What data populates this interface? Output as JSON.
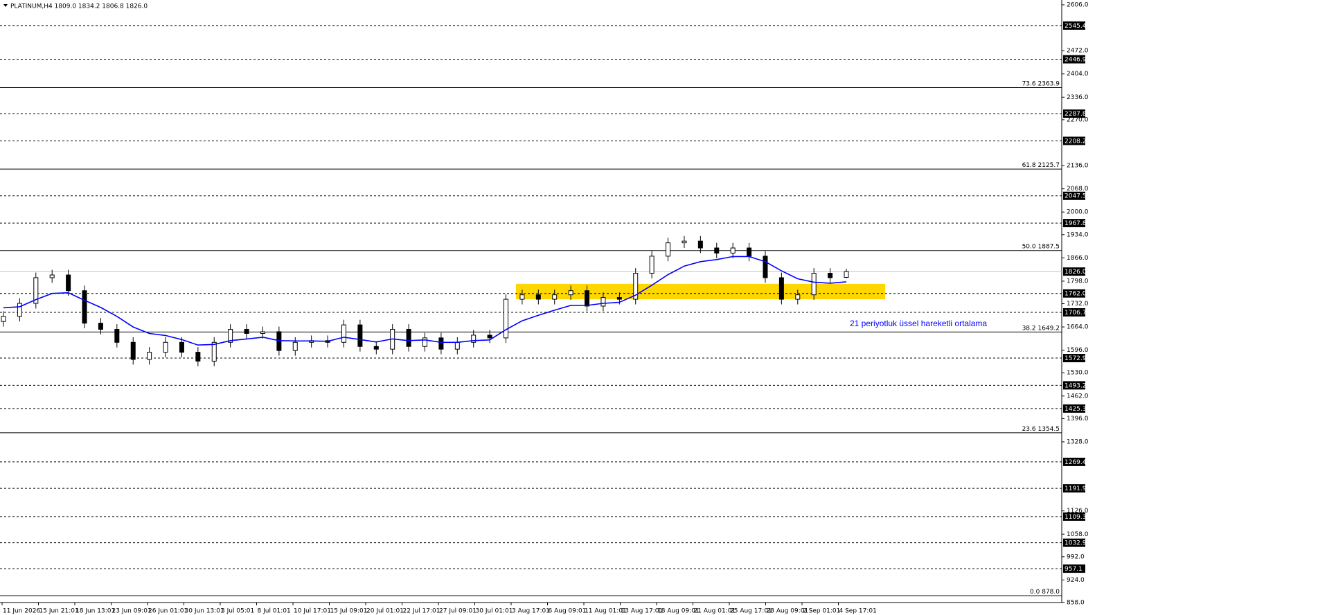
{
  "chart_data": {
    "type": "candlestick",
    "title": "PLATINUM,H4  1809.0 1834.2 1806.8 1826.0",
    "ylim": [
      858,
      2606
    ],
    "yticks": [
      {
        "value": 2606,
        "label": "2606.0"
      },
      {
        "value": 2472,
        "label": "2472.0"
      },
      {
        "value": 2404,
        "label": "2404.0"
      },
      {
        "value": 2336,
        "label": "2336.0"
      },
      {
        "value": 2270,
        "label": "2270.0"
      },
      {
        "value": 2136,
        "label": "2136.0"
      },
      {
        "value": 2068,
        "label": "2068.0"
      },
      {
        "value": 2000,
        "label": "2000.0"
      },
      {
        "value": 1934,
        "label": "1934.0"
      },
      {
        "value": 1866,
        "label": "1866.0"
      },
      {
        "value": 1798,
        "label": "1798.0"
      },
      {
        "value": 1732,
        "label": "1732.0"
      },
      {
        "value": 1664,
        "label": "1664.0"
      },
      {
        "value": 1596,
        "label": "1596.0"
      },
      {
        "value": 1530,
        "label": "1530.0"
      },
      {
        "value": 1462,
        "label": "1462.0"
      },
      {
        "value": 1396,
        "label": "1396.0"
      },
      {
        "value": 1328,
        "label": "1328.0"
      },
      {
        "value": 1126,
        "label": "1126.0"
      },
      {
        "value": 1058,
        "label": "1058.0"
      },
      {
        "value": 992,
        "label": "992.0"
      },
      {
        "value": 924,
        "label": "924.0"
      },
      {
        "value": 858,
        "label": "858.0"
      }
    ],
    "x_labels": [
      "11 Jun 2026",
      "15 Jun 21:01",
      "18 Jun 13:01",
      "23 Jun 09:01",
      "26 Jun 01:01",
      "30 Jun 13:01",
      "3 Jul 05:01",
      "8 Jul 01:01",
      "10 Jul 17:01",
      "15 Jul 09:01",
      "20 Jul 01:01",
      "22 Jul 17:01",
      "27 Jul 09:01",
      "30 Jul 01:01",
      "3 Aug 17:01",
      "6 Aug 09:01",
      "11 Aug 01:01",
      "13 Aug 17:01",
      "18 Aug 09:01",
      "21 Aug 01:01",
      "25 Aug 17:01",
      "28 Aug 09:01",
      "2 Sep 01:01",
      "4 Sep 17:01"
    ],
    "ohlc": [
      [
        1680,
        1710,
        1665,
        1695
      ],
      [
        1695,
        1748,
        1680,
        1733
      ],
      [
        1733,
        1823,
        1718,
        1808
      ],
      [
        1808,
        1831,
        1793,
        1816
      ],
      [
        1816,
        1831,
        1755,
        1770
      ],
      [
        1770,
        1785,
        1660,
        1675
      ],
      [
        1675,
        1690,
        1642,
        1657
      ],
      [
        1657,
        1672,
        1604,
        1619
      ],
      [
        1619,
        1634,
        1554,
        1569
      ],
      [
        1569,
        1605,
        1554,
        1590
      ],
      [
        1590,
        1634,
        1575,
        1619
      ],
      [
        1619,
        1634,
        1575,
        1590
      ],
      [
        1590,
        1605,
        1549,
        1564
      ],
      [
        1564,
        1634,
        1549,
        1619
      ],
      [
        1619,
        1672,
        1604,
        1657
      ],
      [
        1657,
        1672,
        1630,
        1645
      ],
      [
        1645,
        1665,
        1630,
        1650
      ],
      [
        1650,
        1665,
        1580,
        1595
      ],
      [
        1595,
        1634,
        1580,
        1619
      ],
      [
        1619,
        1639,
        1604,
        1624
      ],
      [
        1624,
        1639,
        1604,
        1619
      ],
      [
        1619,
        1685,
        1604,
        1670
      ],
      [
        1670,
        1685,
        1592,
        1607
      ],
      [
        1607,
        1622,
        1584,
        1599
      ],
      [
        1599,
        1672,
        1584,
        1657
      ],
      [
        1657,
        1672,
        1592,
        1607
      ],
      [
        1607,
        1647,
        1592,
        1632
      ],
      [
        1632,
        1647,
        1584,
        1599
      ],
      [
        1599,
        1634,
        1584,
        1619
      ],
      [
        1619,
        1655,
        1604,
        1640
      ],
      [
        1640,
        1655,
        1617,
        1632
      ],
      [
        1632,
        1760,
        1617,
        1745
      ],
      [
        1745,
        1773,
        1730,
        1758
      ],
      [
        1758,
        1773,
        1730,
        1745
      ],
      [
        1745,
        1773,
        1730,
        1758
      ],
      [
        1758,
        1785,
        1743,
        1770
      ],
      [
        1770,
        1785,
        1710,
        1725
      ],
      [
        1725,
        1765,
        1710,
        1750
      ],
      [
        1750,
        1765,
        1730,
        1745
      ],
      [
        1745,
        1836,
        1730,
        1821
      ],
      [
        1821,
        1886,
        1806,
        1871
      ],
      [
        1871,
        1925,
        1856,
        1910
      ],
      [
        1910,
        1930,
        1895,
        1915
      ],
      [
        1915,
        1930,
        1880,
        1895
      ],
      [
        1895,
        1910,
        1865,
        1880
      ],
      [
        1880,
        1910,
        1865,
        1895
      ],
      [
        1895,
        1910,
        1856,
        1871
      ],
      [
        1871,
        1886,
        1793,
        1808
      ],
      [
        1808,
        1823,
        1730,
        1745
      ],
      [
        1745,
        1773,
        1730,
        1758
      ],
      [
        1758,
        1836,
        1743,
        1821
      ],
      [
        1821,
        1836,
        1793,
        1808
      ],
      [
        1809.0,
        1834.2,
        1806.8,
        1826.0
      ]
    ],
    "ema": [
      1720,
      1723,
      1744,
      1762,
      1764,
      1742,
      1721,
      1695,
      1664,
      1645,
      1639,
      1627,
      1611,
      1613,
      1624,
      1629,
      1634,
      1624,
      1623,
      1623,
      1622,
      1634,
      1627,
      1620,
      1629,
      1624,
      1626,
      1619,
      1619,
      1624,
      1626,
      1656,
      1682,
      1698,
      1713,
      1727,
      1727,
      1733,
      1736,
      1757,
      1786,
      1817,
      1842,
      1855,
      1861,
      1870,
      1870,
      1855,
      1828,
      1805,
      1795,
      1792,
      1796
    ],
    "ema_color": "#0000ff",
    "annotation": "21 periyotluk üssel hareketli ortalama",
    "zone": {
      "low": 1745,
      "high": 1790,
      "color": "#ffd700"
    },
    "levels": [
      2545.4,
      2446.9,
      2287.8,
      2208.2,
      2047.5,
      1967.8,
      {
        "value": 1762,
        "label": "1762.0"
      },
      1706.7,
      1572.9,
      1493.2,
      1425.3,
      1269.4,
      1191.9,
      1109.3,
      1032.9,
      957.1
    ],
    "last_price": {
      "value": 1826,
      "label": "1826.0"
    },
    "fib_levels": [
      {
        "level": "73.6",
        "value": 2363.9
      },
      {
        "level": "61.8",
        "value": 2125.7
      },
      {
        "level": "50.0",
        "value": 1887.5
      },
      {
        "level": "38.2",
        "value": 1649.2
      },
      {
        "level": "23.6",
        "value": 1354.5
      },
      {
        "level": "0.0",
        "value": 878,
        "label": "878.0"
      }
    ]
  }
}
